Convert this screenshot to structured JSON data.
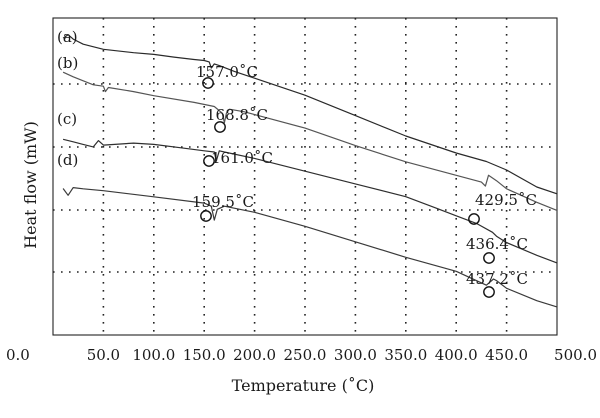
{
  "chart_data": {
    "type": "line",
    "title": "",
    "xlabel": "Temperature (˚C)",
    "ylabel": "Heat flow (mW)",
    "xlim": [
      0,
      500
    ],
    "x_ticks": [
      "0.0",
      "50.0",
      "100.0",
      "150.0",
      "200.0",
      "250.0",
      "300.0",
      "350.0",
      "400.0",
      "450.0",
      "500.0"
    ],
    "grid": "dotted",
    "series": [
      {
        "name": "(a)",
        "points": [
          [
            10,
            1.2
          ],
          [
            15,
            0.2
          ],
          [
            20,
            1.5
          ],
          [
            30,
            3.0
          ],
          [
            50,
            4.5
          ],
          [
            80,
            5.5
          ],
          [
            100,
            6.0
          ],
          [
            120,
            6.8
          ],
          [
            140,
            7.5
          ],
          [
            150,
            7.8
          ],
          [
            155,
            8.2
          ],
          [
            157,
            10.0
          ],
          [
            160,
            8.8
          ],
          [
            165,
            9.3
          ],
          [
            180,
            11.0
          ],
          [
            200,
            13.0
          ],
          [
            250,
            18.0
          ],
          [
            300,
            24.0
          ],
          [
            350,
            30.0
          ],
          [
            400,
            35.0
          ],
          [
            430,
            37.5
          ],
          [
            450,
            40.0
          ],
          [
            480,
            45.0
          ],
          [
            500,
            47.0
          ]
        ],
        "color": "#2a2a2a"
      },
      {
        "name": "(b)",
        "points": [
          [
            10,
            0.8
          ],
          [
            20,
            2.5
          ],
          [
            30,
            4.0
          ],
          [
            40,
            5.5
          ],
          [
            50,
            6.0
          ],
          [
            52,
            8.0
          ],
          [
            55,
            6.5
          ],
          [
            80,
            8.0
          ],
          [
            100,
            9.5
          ],
          [
            140,
            12.0
          ],
          [
            160,
            13.5
          ],
          [
            168,
            16.0
          ],
          [
            170,
            19.5
          ],
          [
            172,
            16.0
          ],
          [
            175,
            14.5
          ],
          [
            190,
            15.5
          ],
          [
            200,
            16.5
          ],
          [
            250,
            21.5
          ],
          [
            300,
            28.0
          ],
          [
            350,
            34.0
          ],
          [
            400,
            39.0
          ],
          [
            425,
            41.5
          ],
          [
            429,
            43.0
          ],
          [
            432,
            39.0
          ],
          [
            440,
            41.0
          ],
          [
            450,
            44.0
          ],
          [
            480,
            49.0
          ],
          [
            500,
            52.0
          ]
        ],
        "color": "#555555"
      },
      {
        "name": "(c)",
        "points": [
          [
            10,
            0.5
          ],
          [
            20,
            1.5
          ],
          [
            30,
            2.5
          ],
          [
            40,
            3.5
          ],
          [
            45,
            1.0
          ],
          [
            50,
            2.8
          ],
          [
            80,
            2.0
          ],
          [
            100,
            2.5
          ],
          [
            130,
            4.0
          ],
          [
            150,
            5.0
          ],
          [
            160,
            5.5
          ],
          [
            162,
            9.0
          ],
          [
            165,
            5.0
          ],
          [
            170,
            5.5
          ],
          [
            200,
            8.0
          ],
          [
            250,
            13.0
          ],
          [
            300,
            18.0
          ],
          [
            350,
            23.0
          ],
          [
            380,
            27.5
          ],
          [
            400,
            30.5
          ],
          [
            420,
            33.5
          ],
          [
            436,
            37.0
          ],
          [
            440,
            38.5
          ],
          [
            450,
            41.0
          ],
          [
            480,
            46.0
          ],
          [
            500,
            49.0
          ]
        ],
        "color": "#2f2f2f"
      },
      {
        "name": "(d)",
        "points": [
          [
            10,
            0.8
          ],
          [
            15,
            3.0
          ],
          [
            20,
            0.5
          ],
          [
            30,
            0.9
          ],
          [
            50,
            1.5
          ],
          [
            100,
            3.5
          ],
          [
            150,
            5.5
          ],
          [
            157,
            6.5
          ],
          [
            160,
            11.0
          ],
          [
            163,
            7.5
          ],
          [
            170,
            6.5
          ],
          [
            200,
            8.5
          ],
          [
            250,
            13.0
          ],
          [
            300,
            18.0
          ],
          [
            350,
            23.0
          ],
          [
            400,
            27.5
          ],
          [
            430,
            32.0
          ],
          [
            437,
            30.0
          ],
          [
            440,
            30.5
          ],
          [
            450,
            33.0
          ],
          [
            480,
            37.0
          ],
          [
            500,
            39.0
          ]
        ],
        "color": "#3a3a3a"
      }
    ],
    "annotations": [
      {
        "series": "(a)",
        "x": 157.0,
        "label": "157.0˚C"
      },
      {
        "series": "(b)",
        "x": 168.8,
        "label": "168.8˚C"
      },
      {
        "series": "(c)",
        "x": 161.0,
        "label": "161.0˚C"
      },
      {
        "series": "(d)",
        "x": 159.5,
        "label": "159.5˚C"
      },
      {
        "series": "(b)",
        "x": 429.5,
        "label": "429.5˚C"
      },
      {
        "series": "(c)",
        "x": 436.4,
        "label": "436.4˚C"
      },
      {
        "series": "(d)",
        "x": 437.2,
        "label": "437.2˚C"
      }
    ]
  }
}
